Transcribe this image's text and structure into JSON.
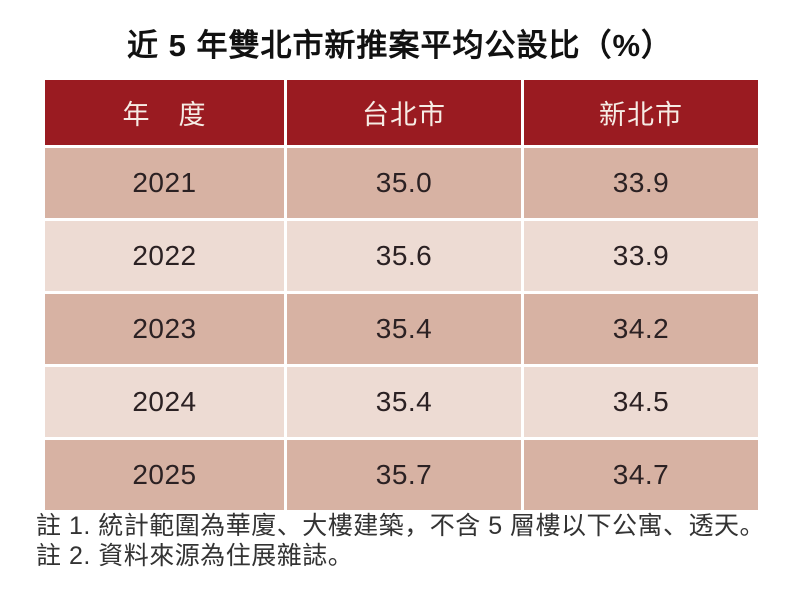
{
  "title": "近 5 年雙北市新推案平均公設比（%）",
  "table": {
    "headers": [
      "年　度",
      "台北市",
      "新北市"
    ],
    "rows": [
      [
        "2021",
        "35.0",
        "33.9"
      ],
      [
        "2022",
        "35.6",
        "33.9"
      ],
      [
        "2023",
        "35.4",
        "34.2"
      ],
      [
        "2024",
        "35.4",
        "34.5"
      ],
      [
        "2025",
        "35.7",
        "34.7"
      ]
    ]
  },
  "notes": [
    "註 1. 統計範圍為華廈、大樓建築，不含 5 層樓以下公寓、透天。",
    "註 2. 資料來源為住展雜誌。"
  ],
  "colors": {
    "header_bg": "#9a1b21",
    "header_text": "#f6ece5",
    "row_dark_bg": "#d7b2a3",
    "row_light_bg": "#eddbd3",
    "cell_text": "#2b2123",
    "title_text": "#111111",
    "note_text": "#333333",
    "background": "#ffffff"
  },
  "chart_data": {
    "type": "table",
    "title": "近 5 年雙北市新推案平均公設比（%）",
    "categories": [
      "2021",
      "2022",
      "2023",
      "2024",
      "2025"
    ],
    "series": [
      {
        "name": "台北市",
        "values": [
          35.0,
          35.6,
          35.4,
          35.4,
          35.7
        ]
      },
      {
        "name": "新北市",
        "values": [
          33.9,
          33.9,
          34.2,
          34.5,
          34.7
        ]
      }
    ],
    "row_header_label": "年　度",
    "unit": "%",
    "annotations": [
      "註 1. 統計範圍為華廈、大樓建築，不含 5 層樓以下公寓、透天。",
      "註 2. 資料來源為住展雜誌。"
    ]
  }
}
